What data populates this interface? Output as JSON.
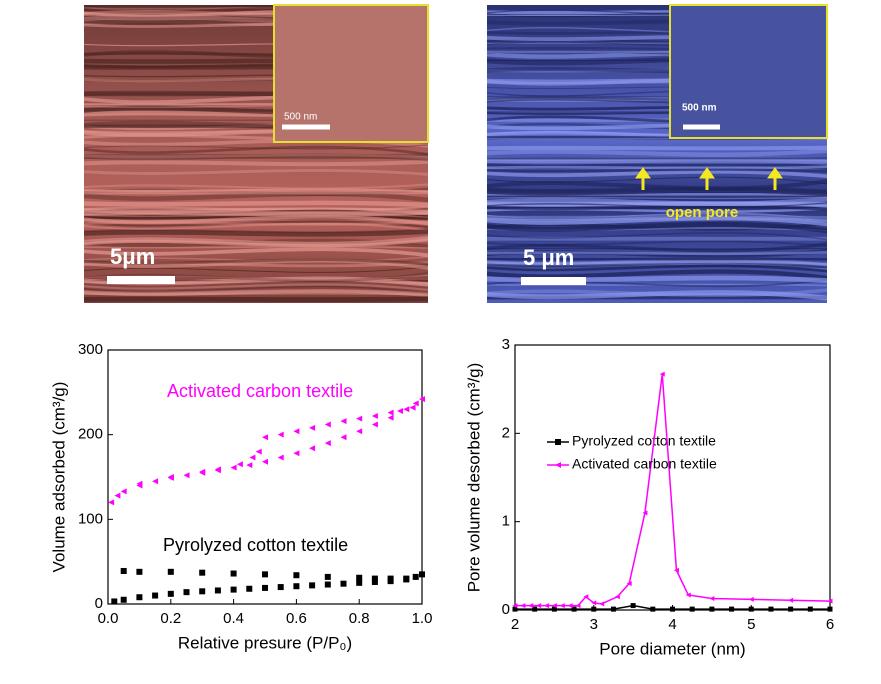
{
  "images": [
    {
      "scale_bar": "5μm",
      "inset_scale_bar": "500 nm"
    },
    {
      "scale_bar": "5 μm",
      "inset_scale_bar": "500 nm",
      "annotation": "open pore"
    }
  ],
  "chart_data": [
    {
      "type": "scatter",
      "xlabel": "Relative presure (P/P₀)",
      "ylabel": "Volume adsorbed (cm³/g)",
      "xlim": [
        0,
        1
      ],
      "ylim": [
        0,
        300
      ],
      "xticks": [
        {
          "value": 0,
          "label": "0.0"
        },
        0.2,
        0.4,
        0.6,
        0.8,
        {
          "value": 1,
          "label": "1.0"
        }
      ],
      "yticks": [
        0,
        100,
        200,
        300
      ],
      "series": [
        {
          "name": "Activated carbon textile",
          "color": "#ff00ff",
          "marker": "triangle",
          "x": [
            0.01,
            0.03,
            0.05,
            0.1,
            0.15,
            0.2,
            0.25,
            0.3,
            0.35,
            0.4,
            0.45,
            0.5,
            0.55,
            0.6,
            0.65,
            0.7,
            0.75,
            0.8,
            0.85,
            0.9,
            0.95,
            0.98,
            1.0,
            0.97,
            0.93,
            0.9,
            0.85,
            0.8,
            0.75,
            0.7,
            0.65,
            0.6,
            0.55,
            0.5,
            0.48,
            0.46,
            0.42,
            0.35,
            0.3,
            0.2,
            0.1
          ],
          "values": [
            120,
            128,
            133,
            140,
            145,
            149,
            152,
            155,
            158,
            161,
            164,
            168,
            173,
            178,
            184,
            190,
            197,
            204,
            212,
            220,
            230,
            237,
            242,
            232,
            228,
            226,
            222,
            219,
            216,
            212,
            208,
            204,
            200,
            197,
            180,
            173,
            165,
            159,
            156,
            150,
            142
          ]
        },
        {
          "name": "Pyrolyzed cotton textile",
          "color": "#000000",
          "marker": "square",
          "x": [
            0.02,
            0.05,
            0.1,
            0.15,
            0.2,
            0.25,
            0.3,
            0.35,
            0.4,
            0.45,
            0.5,
            0.55,
            0.6,
            0.65,
            0.7,
            0.75,
            0.8,
            0.85,
            0.9,
            0.95,
            0.98,
            1.0,
            0.95,
            0.9,
            0.85,
            0.8,
            0.7,
            0.6,
            0.5,
            0.4,
            0.3,
            0.2,
            0.1,
            0.05
          ],
          "values": [
            3,
            5,
            8,
            10,
            12,
            14,
            15,
            16,
            17,
            18,
            19,
            20,
            21,
            22,
            23,
            24,
            25,
            26,
            27,
            29,
            32,
            35,
            30,
            30,
            30,
            31,
            32,
            34,
            35,
            36,
            37,
            38,
            38,
            39
          ]
        }
      ]
    },
    {
      "type": "line",
      "xlabel": "Pore diameter (nm)",
      "ylabel": "Pore volume desorbed (cm³/g)",
      "xlim": [
        2,
        6
      ],
      "ylim": [
        0,
        3
      ],
      "xticks": [
        2,
        3,
        4,
        5,
        6
      ],
      "yticks": [
        0,
        1,
        2,
        3
      ],
      "series": [
        {
          "name": "Pyrolyzed cotton textile",
          "color": "#000000",
          "marker": "square",
          "x": [
            2.0,
            2.25,
            2.5,
            2.75,
            3.0,
            3.25,
            3.5,
            3.75,
            4.0,
            4.25,
            4.5,
            4.75,
            5.0,
            5.25,
            5.5,
            5.75,
            6.0
          ],
          "values": [
            0.01,
            0.01,
            0.01,
            0.01,
            0.01,
            0.01,
            0.05,
            0.01,
            0.01,
            0.01,
            0.01,
            0.01,
            0.01,
            0.01,
            0.01,
            0.01,
            0.01
          ]
        },
        {
          "name": "Activated carbon textile",
          "color": "#ff00ff",
          "marker": "triangle",
          "x": [
            2.0,
            2.1,
            2.2,
            2.3,
            2.4,
            2.5,
            2.6,
            2.7,
            2.8,
            2.9,
            3.0,
            3.1,
            3.3,
            3.45,
            3.65,
            3.87,
            4.05,
            4.2,
            4.5,
            5.0,
            5.5,
            6.0
          ],
          "values": [
            0.05,
            0.05,
            0.05,
            0.05,
            0.05,
            0.05,
            0.05,
            0.05,
            0.05,
            0.15,
            0.08,
            0.07,
            0.15,
            0.3,
            1.1,
            2.67,
            0.45,
            0.17,
            0.13,
            0.12,
            0.11,
            0.1
          ]
        }
      ],
      "legend": "upper left"
    }
  ]
}
